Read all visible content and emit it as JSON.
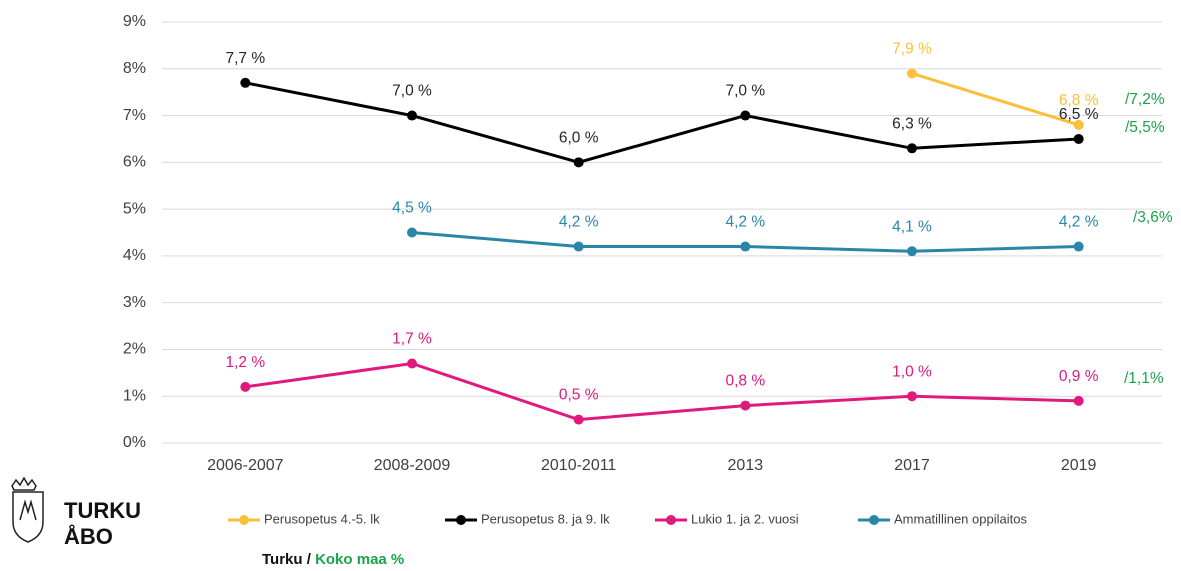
{
  "chart_data": {
    "type": "line",
    "categories": [
      "2006-2007",
      "2008-2009",
      "2010-2011",
      "2013",
      "2017",
      "2019"
    ],
    "series": [
      {
        "name": "Perusopetus 4.-5. lk",
        "color": "#fbbf3a",
        "values": [
          null,
          null,
          null,
          null,
          7.9,
          6.8
        ],
        "value_labels": [
          null,
          null,
          null,
          null,
          "7,9 %",
          "6,8 %"
        ]
      },
      {
        "name": "Perusopetus 8. ja 9. lk",
        "color": "#000000",
        "values": [
          7.7,
          7.0,
          6.0,
          7.0,
          6.3,
          6.5
        ],
        "value_labels": [
          "7,7 %",
          "7,0 %",
          "6,0 %",
          "7,0 %",
          "6,3 %",
          "6,5 %"
        ]
      },
      {
        "name": "Lukio 1. ja 2. vuosi",
        "color": "#e0197d",
        "values": [
          1.2,
          1.7,
          0.5,
          0.8,
          1.0,
          0.9
        ],
        "value_labels": [
          "1,2 %",
          "1,7 %",
          "0,5 %",
          "0,8 %",
          "1,0 %",
          "0,9 %"
        ]
      },
      {
        "name": "Ammatillinen oppilaitos",
        "color": "#2a86a8",
        "values": [
          null,
          4.5,
          4.2,
          4.2,
          4.1,
          4.2
        ],
        "value_labels": [
          null,
          "4,5 %",
          "4,2 %",
          "4,2 %",
          "4,1 %",
          "4,2 %"
        ]
      }
    ],
    "ylim": [
      0,
      9
    ],
    "yticks": [
      {
        "value": 0,
        "label": "0%"
      },
      {
        "value": 1,
        "label": "1%"
      },
      {
        "value": 2,
        "label": "2%"
      },
      {
        "value": 3,
        "label": "3%"
      },
      {
        "value": 4,
        "label": "4%"
      },
      {
        "value": 5,
        "label": "5%"
      },
      {
        "value": 6,
        "label": "6%"
      },
      {
        "value": 7,
        "label": "7%"
      },
      {
        "value": 8,
        "label": "8%"
      },
      {
        "value": 9,
        "label": "9%"
      }
    ],
    "grid": true,
    "legend": "bottom",
    "annotations": [
      "/7,2%",
      "/5,5%",
      "/3,6%",
      "/1,1%"
    ],
    "annotation_color": "#1aa34a",
    "footer": [
      "Turku /",
      "Koko maa %"
    ],
    "logo": [
      "TURKU",
      "ÅBO"
    ]
  }
}
